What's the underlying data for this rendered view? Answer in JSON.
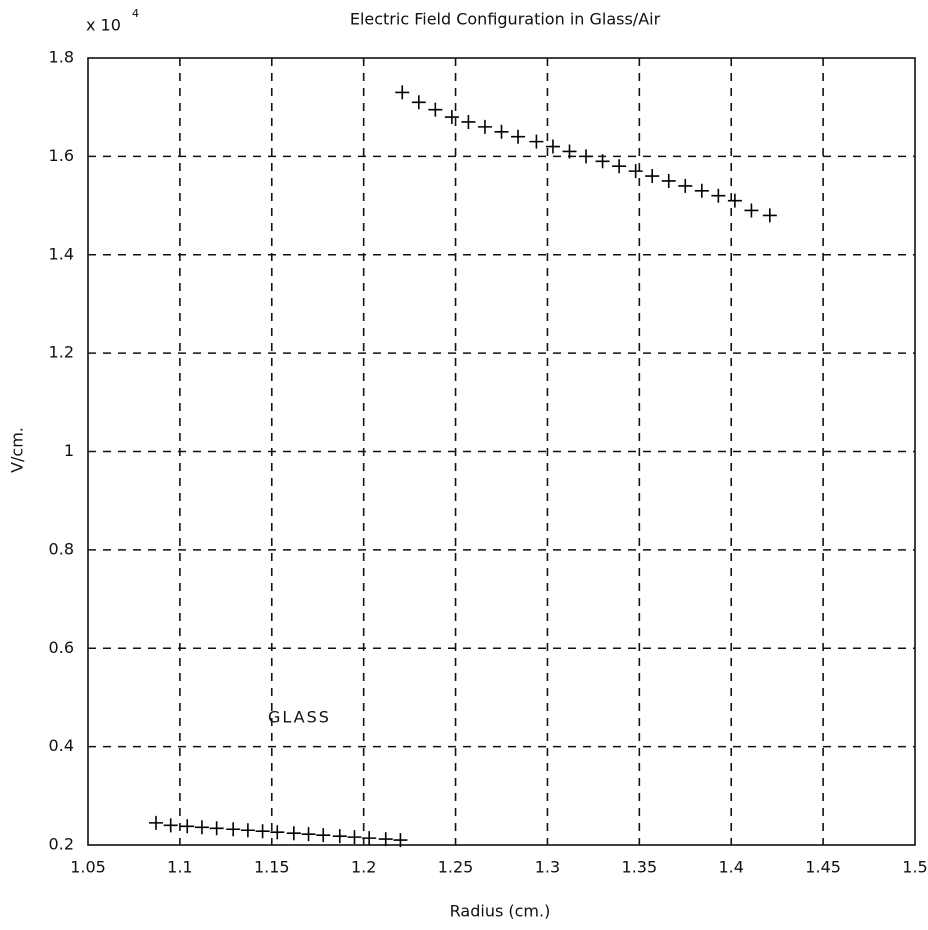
{
  "chart_data": {
    "type": "scatter",
    "title": "Electric Field Configuration in Glass/Air",
    "x_label": "Radius (cm.)",
    "y_label": "V/cm.",
    "y_multiplier": "x 10",
    "y_multiplier_exponent": "4",
    "annotations": [
      "GLASS"
    ],
    "marker": "+",
    "grid": true,
    "xlim": [
      1.05,
      1.5
    ],
    "xticks": [
      1.05,
      1.1,
      1.15,
      1.2,
      1.25,
      1.3,
      1.35,
      1.4,
      1.45,
      1.5
    ],
    "ylim": [
      0.2,
      1.8
    ],
    "yticks": [
      0.2,
      0.4,
      0.6,
      0.8,
      1,
      1.2,
      1.4,
      1.6,
      1.8
    ],
    "series": [
      {
        "color": "#000000",
        "x": [
          1.087,
          1.095,
          1.104,
          1.112,
          1.12,
          1.129,
          1.137,
          1.145,
          1.153,
          1.162,
          1.17,
          1.178,
          1.187,
          1.195,
          1.203,
          1.212,
          1.22,
          1.221,
          1.23,
          1.239,
          1.248,
          1.257,
          1.266,
          1.275,
          1.284,
          1.294,
          1.303,
          1.312,
          1.321,
          1.33,
          1.339,
          1.348,
          1.357,
          1.366,
          1.375,
          1.384,
          1.393,
          1.402,
          1.411,
          1.421
        ],
        "values": [
          0.245,
          0.24,
          0.238,
          0.236,
          0.234,
          0.232,
          0.23,
          0.228,
          0.226,
          0.224,
          0.222,
          0.22,
          0.218,
          0.216,
          0.214,
          0.212,
          0.21,
          1.73,
          1.71,
          1.695,
          1.68,
          1.67,
          1.66,
          1.65,
          1.64,
          1.63,
          1.62,
          1.61,
          1.6,
          1.59,
          1.58,
          1.57,
          1.56,
          1.55,
          1.54,
          1.53,
          1.52,
          1.51,
          1.49,
          1.48
        ]
      }
    ]
  }
}
